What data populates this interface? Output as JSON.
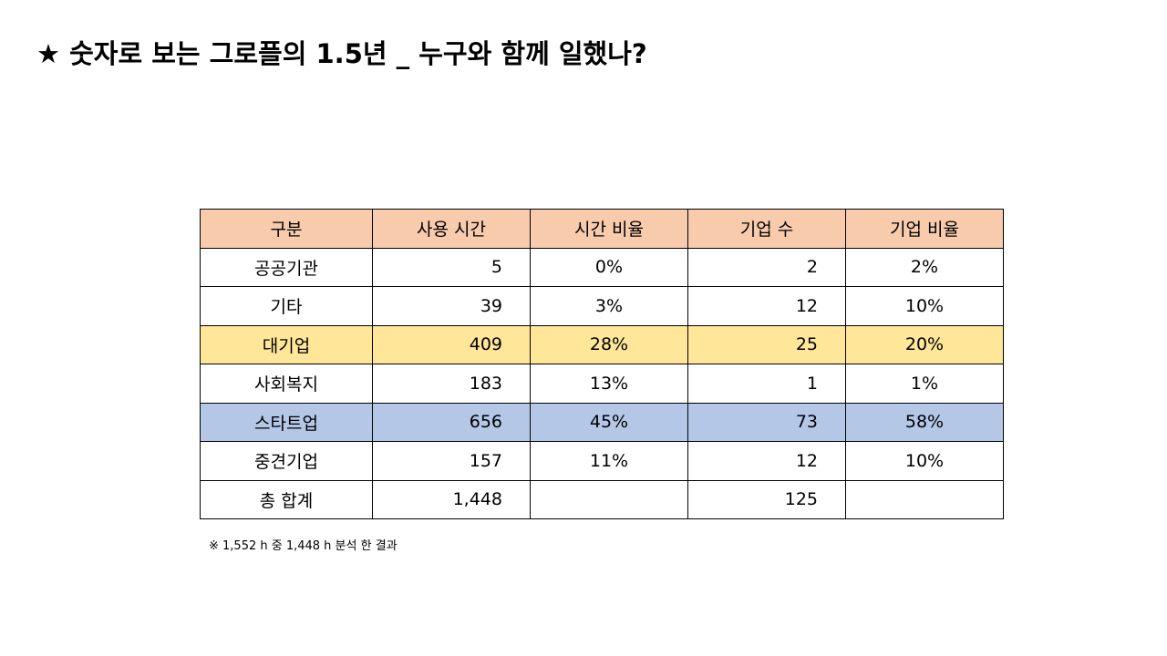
{
  "header": {
    "title": "★ 숫자로 보는 그로플의 1.5년 _ 누구와 함께 일했나?"
  },
  "table": {
    "columns": [
      "구분",
      "사용 시간",
      "시간 비율",
      "기업 수",
      "기업 비율"
    ],
    "rows": [
      [
        "공공기관",
        "5",
        "0%",
        "2",
        "2%"
      ],
      [
        "기타",
        "39",
        "3%",
        "12",
        "10%"
      ],
      [
        "대기업",
        "409",
        "28%",
        "25",
        "20%"
      ],
      [
        "사회복지",
        "183",
        "13%",
        "1",
        "1%"
      ],
      [
        "스타트업",
        "656",
        "45%",
        "73",
        "58%"
      ],
      [
        "중견기업",
        "157",
        "11%",
        "12",
        "10%"
      ],
      [
        "총 합계",
        "1,448",
        null,
        "125",
        null
      ]
    ]
  },
  "footnote": "※ 1,552 h 중 1,448 h 분석 한 결과"
}
